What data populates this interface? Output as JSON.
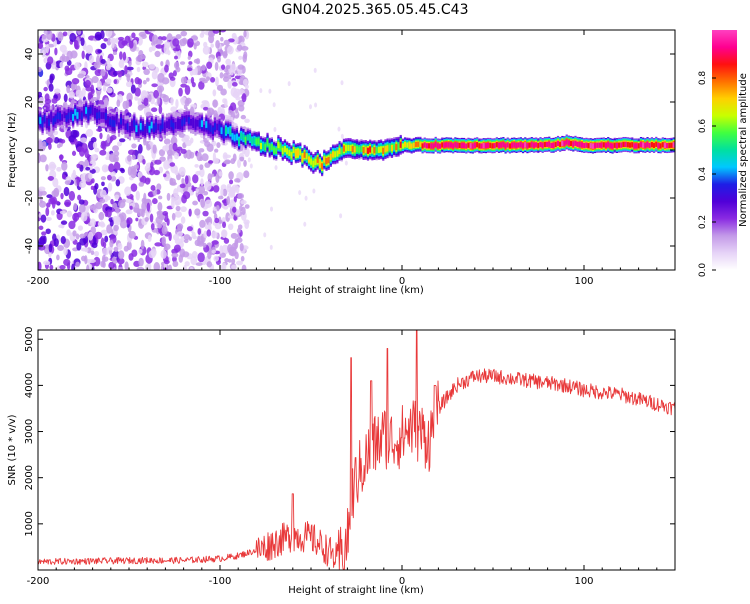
{
  "title": "GN04.2025.365.05.45.C43",
  "colors": {
    "snr_line": "#e8393a",
    "colormap": [
      "#ffffff",
      "#e6d3f7",
      "#c39ae8",
      "#8a2be2",
      "#5000d8",
      "#1e1ee6",
      "#00c8ff",
      "#00e0a0",
      "#40ff40",
      "#c8ff00",
      "#ffd000",
      "#ff7000",
      "#ff1010",
      "#ff0090",
      "#ff40c0"
    ]
  },
  "chart_data": [
    {
      "type": "heatmap",
      "name": "spectrogram",
      "xlabel": "Height of straight line (km)",
      "ylabel": "Frequency (Hz)",
      "xlim": [
        -200,
        150
      ],
      "ylim": [
        -50,
        50
      ],
      "xticks": [
        -200,
        -100,
        0,
        100
      ],
      "xtick_labels": [
        "-200",
        "-100",
        "0",
        "100"
      ],
      "yticks": [
        -40,
        -20,
        0,
        20,
        40
      ],
      "ytick_labels": [
        "-40",
        "-20",
        "0",
        "20",
        "40"
      ],
      "ridge": {
        "x": [
          -200,
          -185,
          -170,
          -160,
          -150,
          -140,
          -130,
          -120,
          -110,
          -100,
          -90,
          -80,
          -70,
          -60,
          -50,
          -45,
          -40,
          -30,
          -20,
          -10,
          0,
          10,
          20,
          40,
          60,
          80,
          90,
          100,
          120,
          150
        ],
        "y": [
          12,
          14,
          16,
          12,
          10,
          9,
          10,
          12,
          10,
          8,
          5,
          3,
          1,
          -1,
          -4,
          -6,
          -3,
          1,
          0,
          0,
          2,
          2,
          2,
          2,
          2,
          2,
          3,
          2,
          2,
          2
        ]
      },
      "colorbar": {
        "label": "Normalized spectral amplitude",
        "range": [
          0,
          1
        ],
        "ticks": [
          0.0,
          0.2,
          0.4,
          0.6,
          0.8
        ],
        "tick_labels": [
          "0.0",
          "0.2",
          "0.4",
          "0.6",
          "0.8"
        ]
      }
    },
    {
      "type": "line",
      "name": "snr",
      "xlabel": "Height of straight line (km)",
      "ylabel": "SNR (10 * v/v)",
      "xlim": [
        -200,
        150
      ],
      "ylim": [
        0,
        5200
      ],
      "xticks": [
        -200,
        -100,
        0,
        100
      ],
      "xtick_labels": [
        "-200",
        "-100",
        "0",
        "100"
      ],
      "yticks": [
        1000,
        2000,
        3000,
        4000,
        5000
      ],
      "ytick_labels": [
        "1000",
        "2000",
        "3000",
        "4000",
        "5000"
      ],
      "series": [
        {
          "name": "SNR",
          "x": [
            -200,
            -180,
            -160,
            -140,
            -120,
            -100,
            -90,
            -80,
            -70,
            -60,
            -50,
            -40,
            -35,
            -30,
            -28,
            -25,
            -20,
            -15,
            -10,
            -5,
            0,
            5,
            10,
            15,
            20,
            30,
            40,
            50,
            60,
            70,
            80,
            90,
            100,
            110,
            120,
            130,
            140,
            150
          ],
          "y": [
            150,
            160,
            170,
            180,
            180,
            220,
            280,
            400,
            600,
            750,
            700,
            400,
            200,
            600,
            1500,
            2000,
            2400,
            2700,
            2900,
            2800,
            2900,
            3100,
            3000,
            2800,
            3500,
            4000,
            4200,
            4200,
            4150,
            4100,
            4050,
            4000,
            3900,
            3850,
            3800,
            3700,
            3600,
            3500
          ],
          "spikes": [
            {
              "x": -60,
              "y": 1650
            },
            {
              "x": -28,
              "y": 4600
            },
            {
              "x": -17,
              "y": 4100
            },
            {
              "x": -8,
              "y": 4800
            },
            {
              "x": 8,
              "y": 5200
            },
            {
              "x": 18,
              "y": 4000
            }
          ]
        }
      ]
    }
  ]
}
